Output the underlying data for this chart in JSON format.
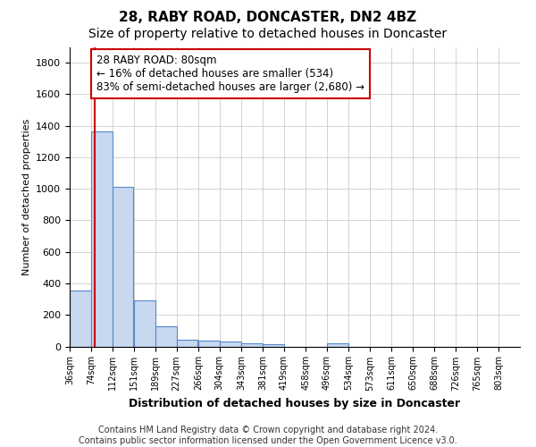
{
  "title1": "28, RABY ROAD, DONCASTER, DN2 4BZ",
  "title2": "Size of property relative to detached houses in Doncaster",
  "xlabel": "Distribution of detached houses by size in Doncaster",
  "ylabel": "Number of detached properties",
  "bar_left_edges": [
    36,
    74,
    112,
    151,
    189,
    227,
    266,
    304,
    343,
    381,
    419,
    458,
    496,
    534,
    573,
    611,
    650,
    688,
    726,
    765
  ],
  "bar_heights": [
    355,
    1365,
    1015,
    290,
    125,
    42,
    35,
    30,
    22,
    15,
    0,
    0,
    18,
    0,
    0,
    0,
    0,
    0,
    0,
    0
  ],
  "bin_width": 38,
  "bar_color": "#c8d8ee",
  "bar_edge_color": "#5588cc",
  "property_line_x": 80,
  "property_line_color": "#cc0000",
  "annotation_text": "28 RABY ROAD: 80sqm\n← 16% of detached houses are smaller (534)\n83% of semi-detached houses are larger (2,680) →",
  "annotation_box_color": "#cc0000",
  "ylim": [
    0,
    1900
  ],
  "yticks": [
    0,
    200,
    400,
    600,
    800,
    1000,
    1200,
    1400,
    1600,
    1800
  ],
  "tick_labels": [
    "36sqm",
    "74sqm",
    "112sqm",
    "151sqm",
    "189sqm",
    "227sqm",
    "266sqm",
    "304sqm",
    "343sqm",
    "381sqm",
    "419sqm",
    "458sqm",
    "496sqm",
    "534sqm",
    "573sqm",
    "611sqm",
    "650sqm",
    "688sqm",
    "726sqm",
    "765sqm",
    "803sqm"
  ],
  "background_color": "#ffffff",
  "plot_bg_color": "#ffffff",
  "footer_text": "Contains HM Land Registry data © Crown copyright and database right 2024.\nContains public sector information licensed under the Open Government Licence v3.0.",
  "grid_color": "#cccccc",
  "title1_fontsize": 11,
  "title2_fontsize": 10,
  "annotation_fontsize": 8.5,
  "footer_fontsize": 7,
  "ylabel_fontsize": 8,
  "xlabel_fontsize": 9,
  "ytick_fontsize": 8,
  "xtick_fontsize": 7
}
